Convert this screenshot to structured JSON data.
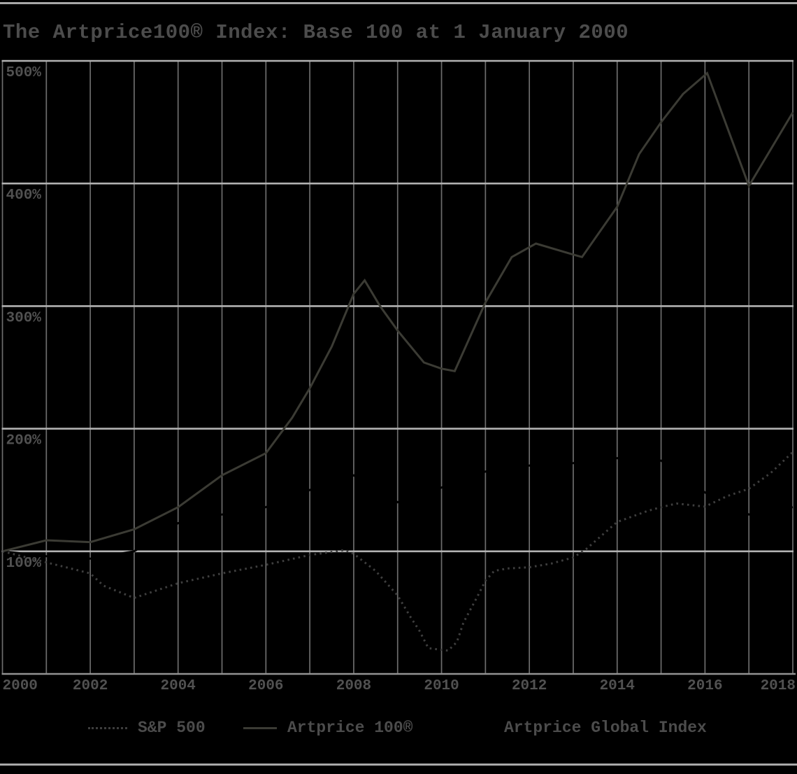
{
  "page": {
    "title": "The Artprice100® Index: Base 100 at 1 January 2000",
    "background_color": "#000000"
  },
  "legend": {
    "position": "bottom",
    "items": [
      {
        "label": "S&P 500",
        "style": "dotted",
        "color": "#3e3e3e"
      },
      {
        "label": "Artprice 100®",
        "style": "solid",
        "color": "#3b3b34"
      },
      {
        "label": "Artprice Global Index",
        "style": "solid",
        "color": "#000000"
      }
    ]
  },
  "chart_data": {
    "type": "line",
    "title": "The Artprice100® Index: Base 100 at 1 January 2000",
    "xlabel": "",
    "ylabel": "",
    "x_axis": {
      "min": 2000,
      "max": 2018,
      "gridline_every_years": 1,
      "tick_labels": [
        "2000",
        "2002",
        "2004",
        "2006",
        "2008",
        "2010",
        "2012",
        "2014",
        "2016",
        "2018"
      ],
      "tick_years": [
        2000,
        2002,
        2004,
        2006,
        2008,
        2010,
        2012,
        2014,
        2016,
        2018
      ]
    },
    "y_axis": {
      "min": 0,
      "max": 500,
      "unit": "%",
      "tick_values": [
        100,
        200,
        300,
        400,
        500
      ],
      "tick_labels": [
        "100%",
        "200%",
        "300%",
        "400%",
        "500%"
      ]
    },
    "style": {
      "h_gridline_color": "#b2b2b2",
      "v_gridline_color": "#6d6d6d",
      "baseline_color": "#929292",
      "label_color": "#515151"
    },
    "series": [
      {
        "name": "Artprice Global Index",
        "style": "solid",
        "color": "#000000",
        "hidden_on_background": true,
        "points": [
          [
            2000,
            100
          ],
          [
            2001,
            96
          ],
          [
            2002,
            94
          ],
          [
            2003,
            100
          ],
          [
            2004,
            123
          ],
          [
            2005,
            130
          ],
          [
            2006,
            136
          ],
          [
            2007,
            150
          ],
          [
            2008,
            162
          ],
          [
            2009,
            140
          ],
          [
            2010,
            152
          ],
          [
            2011,
            165
          ],
          [
            2012,
            170
          ],
          [
            2013,
            172
          ],
          [
            2014,
            176
          ],
          [
            2015,
            174
          ],
          [
            2016,
            148
          ],
          [
            2017,
            130
          ],
          [
            2018,
            136
          ]
        ]
      },
      {
        "name": "Artprice 100®",
        "style": "solid",
        "color": "#3b3b34",
        "points": [
          [
            2000,
            100
          ],
          [
            2001,
            109
          ],
          [
            2002,
            107.5
          ],
          [
            2003,
            118
          ],
          [
            2004,
            136
          ],
          [
            2005,
            162
          ],
          [
            2006,
            180
          ],
          [
            2006.6,
            209
          ],
          [
            2007,
            233
          ],
          [
            2007.5,
            267
          ],
          [
            2008,
            310
          ],
          [
            2008.25,
            321
          ],
          [
            2008.6,
            300
          ],
          [
            2009,
            280
          ],
          [
            2009.6,
            254
          ],
          [
            2010,
            249
          ],
          [
            2010.3,
            247
          ],
          [
            2011,
            303
          ],
          [
            2011.6,
            340
          ],
          [
            2012.15,
            351
          ],
          [
            2013,
            342
          ],
          [
            2013.2,
            340
          ],
          [
            2014,
            381
          ],
          [
            2014.5,
            424
          ],
          [
            2015,
            450
          ],
          [
            2015.5,
            473
          ],
          [
            2016.05,
            490
          ],
          [
            2017,
            398
          ],
          [
            2018,
            458
          ]
        ]
      },
      {
        "name": "S&P 500",
        "style": "dotted",
        "color": "#3e3e3e",
        "points": [
          [
            2000,
            100
          ],
          [
            2001,
            91
          ],
          [
            2002,
            82
          ],
          [
            2002.3,
            72
          ],
          [
            2003,
            62
          ],
          [
            2004,
            74
          ],
          [
            2005,
            82
          ],
          [
            2006,
            89
          ],
          [
            2007,
            97
          ],
          [
            2007.8,
            101
          ],
          [
            2008,
            98
          ],
          [
            2008.5,
            84
          ],
          [
            2009,
            64
          ],
          [
            2009.3,
            46
          ],
          [
            2009.5,
            35
          ],
          [
            2009.7,
            21
          ],
          [
            2010.15,
            19
          ],
          [
            2010.35,
            26
          ],
          [
            2010.5,
            42
          ],
          [
            2010.8,
            62
          ],
          [
            2011,
            76
          ],
          [
            2011.2,
            84
          ],
          [
            2011.5,
            86
          ],
          [
            2012,
            87
          ],
          [
            2012.5,
            90
          ],
          [
            2013,
            95
          ],
          [
            2013.3,
            102
          ],
          [
            2014,
            124
          ],
          [
            2014.7,
            133
          ],
          [
            2015,
            136
          ],
          [
            2015.35,
            139
          ],
          [
            2016,
            136.5
          ],
          [
            2016.5,
            145
          ],
          [
            2017,
            151
          ],
          [
            2017.5,
            164
          ],
          [
            2018,
            181
          ]
        ]
      }
    ]
  }
}
